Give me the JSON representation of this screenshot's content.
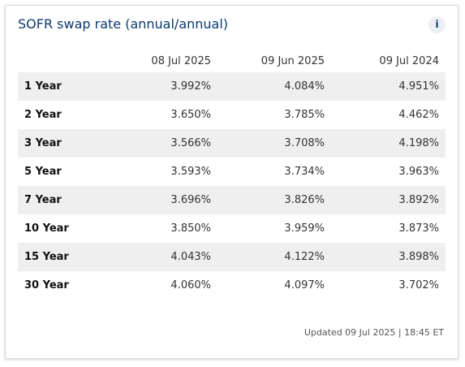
{
  "card": {
    "title": "SOFR swap rate (annual/annual)",
    "info_label": "i",
    "footer": "Updated 09 Jul 2025 | 18:45 ET"
  },
  "table": {
    "headers": [
      "",
      "08 Jul 2025",
      "09 Jun 2025",
      "09 Jul 2024"
    ],
    "rows": [
      {
        "term": "1 Year",
        "v1": "3.992%",
        "v2": "4.084%",
        "v3": "4.951%"
      },
      {
        "term": "2 Year",
        "v1": "3.650%",
        "v2": "3.785%",
        "v3": "4.462%"
      },
      {
        "term": "3 Year",
        "v1": "3.566%",
        "v2": "3.708%",
        "v3": "4.198%"
      },
      {
        "term": "5 Year",
        "v1": "3.593%",
        "v2": "3.734%",
        "v3": "3.963%"
      },
      {
        "term": "7 Year",
        "v1": "3.696%",
        "v2": "3.826%",
        "v3": "3.892%"
      },
      {
        "term": "10 Year",
        "v1": "3.850%",
        "v2": "3.959%",
        "v3": "3.873%"
      },
      {
        "term": "15 Year",
        "v1": "4.043%",
        "v2": "4.122%",
        "v3": "3.898%"
      },
      {
        "term": "30 Year",
        "v1": "4.060%",
        "v2": "4.097%",
        "v3": "3.702%"
      }
    ]
  },
  "colors": {
    "title": "#0b3a6e",
    "row_shade": "#efefef",
    "info_bg": "#eceff3"
  }
}
